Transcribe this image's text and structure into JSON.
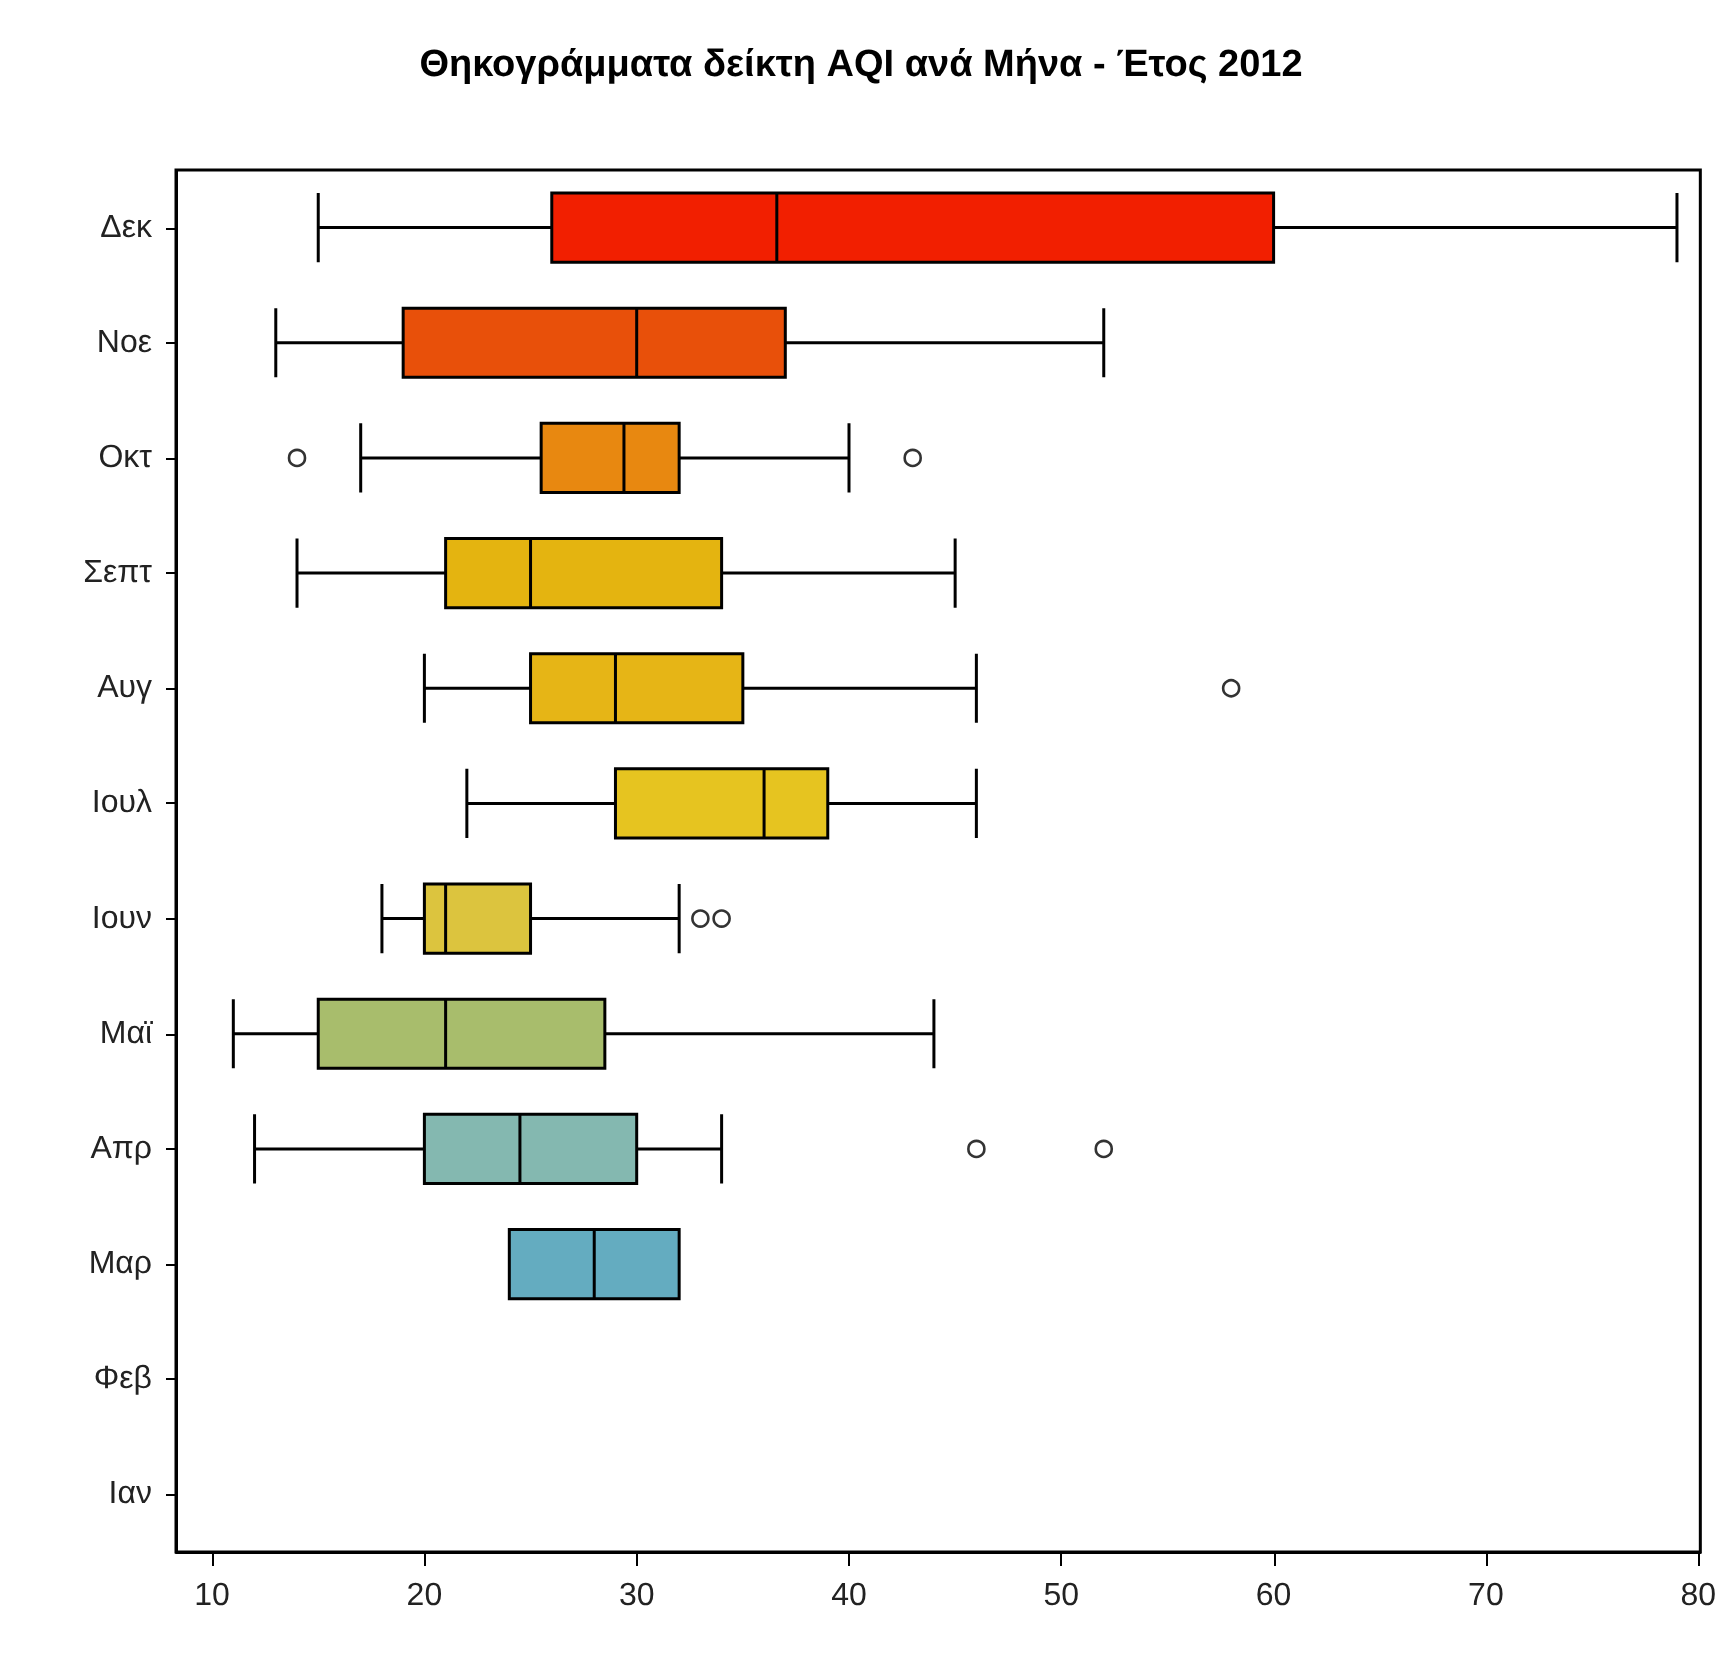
{
  "chart_data": {
    "type": "box",
    "title": "Θηκογράμματα δείκτη AQI ανά Μήνα - Έτος 2012",
    "orientation": "horizontal",
    "categories": [
      "Δεκ",
      "Νοε",
      "Οκτ",
      "Σεπτ",
      "Αυγ",
      "Ιουλ",
      "Ιουν",
      "Μαϊ",
      "Απρ",
      "Μαρ",
      "Φεβ",
      "Ιαν"
    ],
    "colors": [
      "#f21f00",
      "#e8500a",
      "#e88810",
      "#e4b410",
      "#e6b516",
      "#e6c420",
      "#dcc43e",
      "#a8bd6c",
      "#84b8b0",
      "#64acc0",
      null,
      null
    ],
    "boxes": [
      {
        "low": 15,
        "q1": 26,
        "median": 36.6,
        "q3": 60,
        "high": 79
      },
      {
        "low": 13,
        "q1": 19,
        "median": 30,
        "q3": 37,
        "high": 52
      },
      {
        "low": 17,
        "q1": 25.5,
        "median": 29.4,
        "q3": 32,
        "high": 40,
        "outliers": [
          14,
          43
        ]
      },
      {
        "low": 14,
        "q1": 21,
        "median": 25,
        "q3": 34,
        "high": 45
      },
      {
        "low": 20,
        "q1": 25,
        "median": 29,
        "q3": 35,
        "high": 46,
        "outliers": [
          58
        ]
      },
      {
        "low": 22,
        "q1": 29,
        "median": 36,
        "q3": 39,
        "high": 46
      },
      {
        "low": 18,
        "q1": 20,
        "median": 21,
        "q3": 25,
        "high": 32,
        "outliers": [
          33,
          34
        ]
      },
      {
        "low": 11,
        "q1": 15,
        "median": 21,
        "q3": 28.5,
        "high": 44
      },
      {
        "low": 12,
        "q1": 20,
        "median": 24.5,
        "q3": 30,
        "high": 34,
        "outliers": [
          46,
          52
        ]
      },
      {
        "low": 24,
        "q1": 24,
        "median": 28,
        "q3": 32,
        "high": 32
      },
      null,
      null
    ],
    "xlim": [
      8.3,
      80.1
    ],
    "xticks": [
      10,
      20,
      30,
      40,
      50,
      60,
      70,
      80
    ],
    "grid": false,
    "marker": "circle"
  }
}
